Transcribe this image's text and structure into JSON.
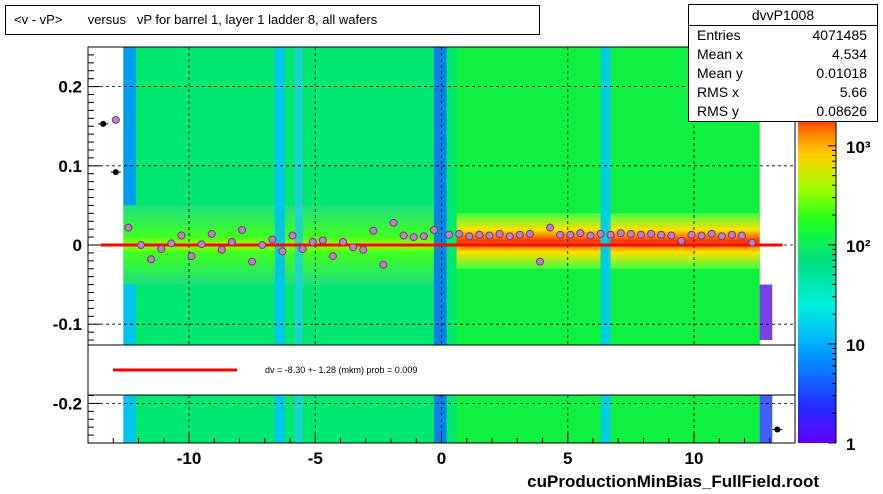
{
  "title": "<v - vP>       versus   vP for barrel 1, layer 1 ladder 8, all wafers",
  "footer": "cuProductionMinBias_FullField.root",
  "stats": {
    "name": "dvvP1008",
    "rows": [
      {
        "label": "Entries",
        "value": "4071485"
      },
      {
        "label": "Mean x",
        "value": "4.534"
      },
      {
        "label": "Mean y",
        "value": "0.01018"
      },
      {
        "label": "RMS x",
        "value": "5.66"
      },
      {
        "label": "RMS y",
        "value": "0.08626"
      }
    ]
  },
  "fit_legend": "dv =   -8.30 +-  1.28 (mkm) prob = 0.009",
  "colors": {
    "fit_line": "#ff0000",
    "frame": "#000000",
    "profile_marker": "#c080c0"
  },
  "chart_data": {
    "type": "heatmap",
    "xlim": [
      -14,
      14
    ],
    "ylim": [
      -0.25,
      0.25
    ],
    "x_ticks": [
      -10,
      -5,
      0,
      5,
      10
    ],
    "x_tick_labels": [
      "-10",
      "-5",
      "0",
      "5",
      "10"
    ],
    "y_ticks": [
      -0.2,
      -0.1,
      0,
      0.1,
      0.2
    ],
    "y_tick_labels": [
      "-0.2",
      "-0.1",
      "0",
      "0.1",
      "0.2"
    ],
    "grid": true,
    "colorbar": {
      "scale": "log",
      "min": 1,
      "max": 2000,
      "ticks": [
        1,
        10,
        100,
        1000
      ],
      "tick_labels": [
        "1",
        "10",
        "10²",
        "10³"
      ]
    },
    "fit_line": {
      "x": [
        -13.5,
        13.5
      ],
      "y": [
        0,
        0
      ]
    },
    "profile": {
      "x": [
        -12.9,
        -12.4,
        -11.9,
        -11.5,
        -11.1,
        -10.7,
        -10.3,
        -9.9,
        -9.5,
        -9.1,
        -8.7,
        -8.3,
        -7.9,
        -7.5,
        -7.1,
        -6.7,
        -6.3,
        -5.9,
        -5.5,
        -5.1,
        -4.7,
        -4.3,
        -3.9,
        -3.5,
        -3.1,
        -2.7,
        -2.3,
        -1.9,
        -1.5,
        -1.1,
        -0.7,
        -0.3,
        0.3,
        0.7,
        1.1,
        1.5,
        1.9,
        2.3,
        2.7,
        3.1,
        3.5,
        3.9,
        4.3,
        4.7,
        5.1,
        5.5,
        5.9,
        6.3,
        6.7,
        7.1,
        7.5,
        7.9,
        8.3,
        8.7,
        9.1,
        9.5,
        9.9,
        10.3,
        10.7,
        11.1,
        11.5,
        11.9,
        12.3
      ],
      "y": [
        0.158,
        0.022,
        0.0,
        -0.018,
        -0.005,
        0.002,
        0.012,
        -0.014,
        0.001,
        0.014,
        -0.006,
        0.004,
        0.019,
        -0.021,
        0.0,
        0.007,
        -0.008,
        0.012,
        -0.005,
        0.004,
        0.006,
        -0.014,
        0.004,
        -0.003,
        -0.006,
        0.018,
        -0.025,
        0.028,
        0.012,
        0.01,
        0.011,
        0.019,
        0.013,
        0.014,
        0.011,
        0.013,
        0.012,
        0.014,
        0.011,
        0.013,
        0.014,
        -0.021,
        0.022,
        0.013,
        0.013,
        0.015,
        0.012,
        0.014,
        0.013,
        0.015,
        0.014,
        0.013,
        0.014,
        0.013,
        0.012,
        0.005,
        0.013,
        0.012,
        0.014,
        0.011,
        0.013,
        0.012,
        0.003
      ]
    },
    "points_outside": [
      {
        "x": -13.4,
        "y": 0.153
      },
      {
        "x": -12.9,
        "y": 0.092
      },
      {
        "x": 13.3,
        "y": -0.233
      }
    ]
  }
}
